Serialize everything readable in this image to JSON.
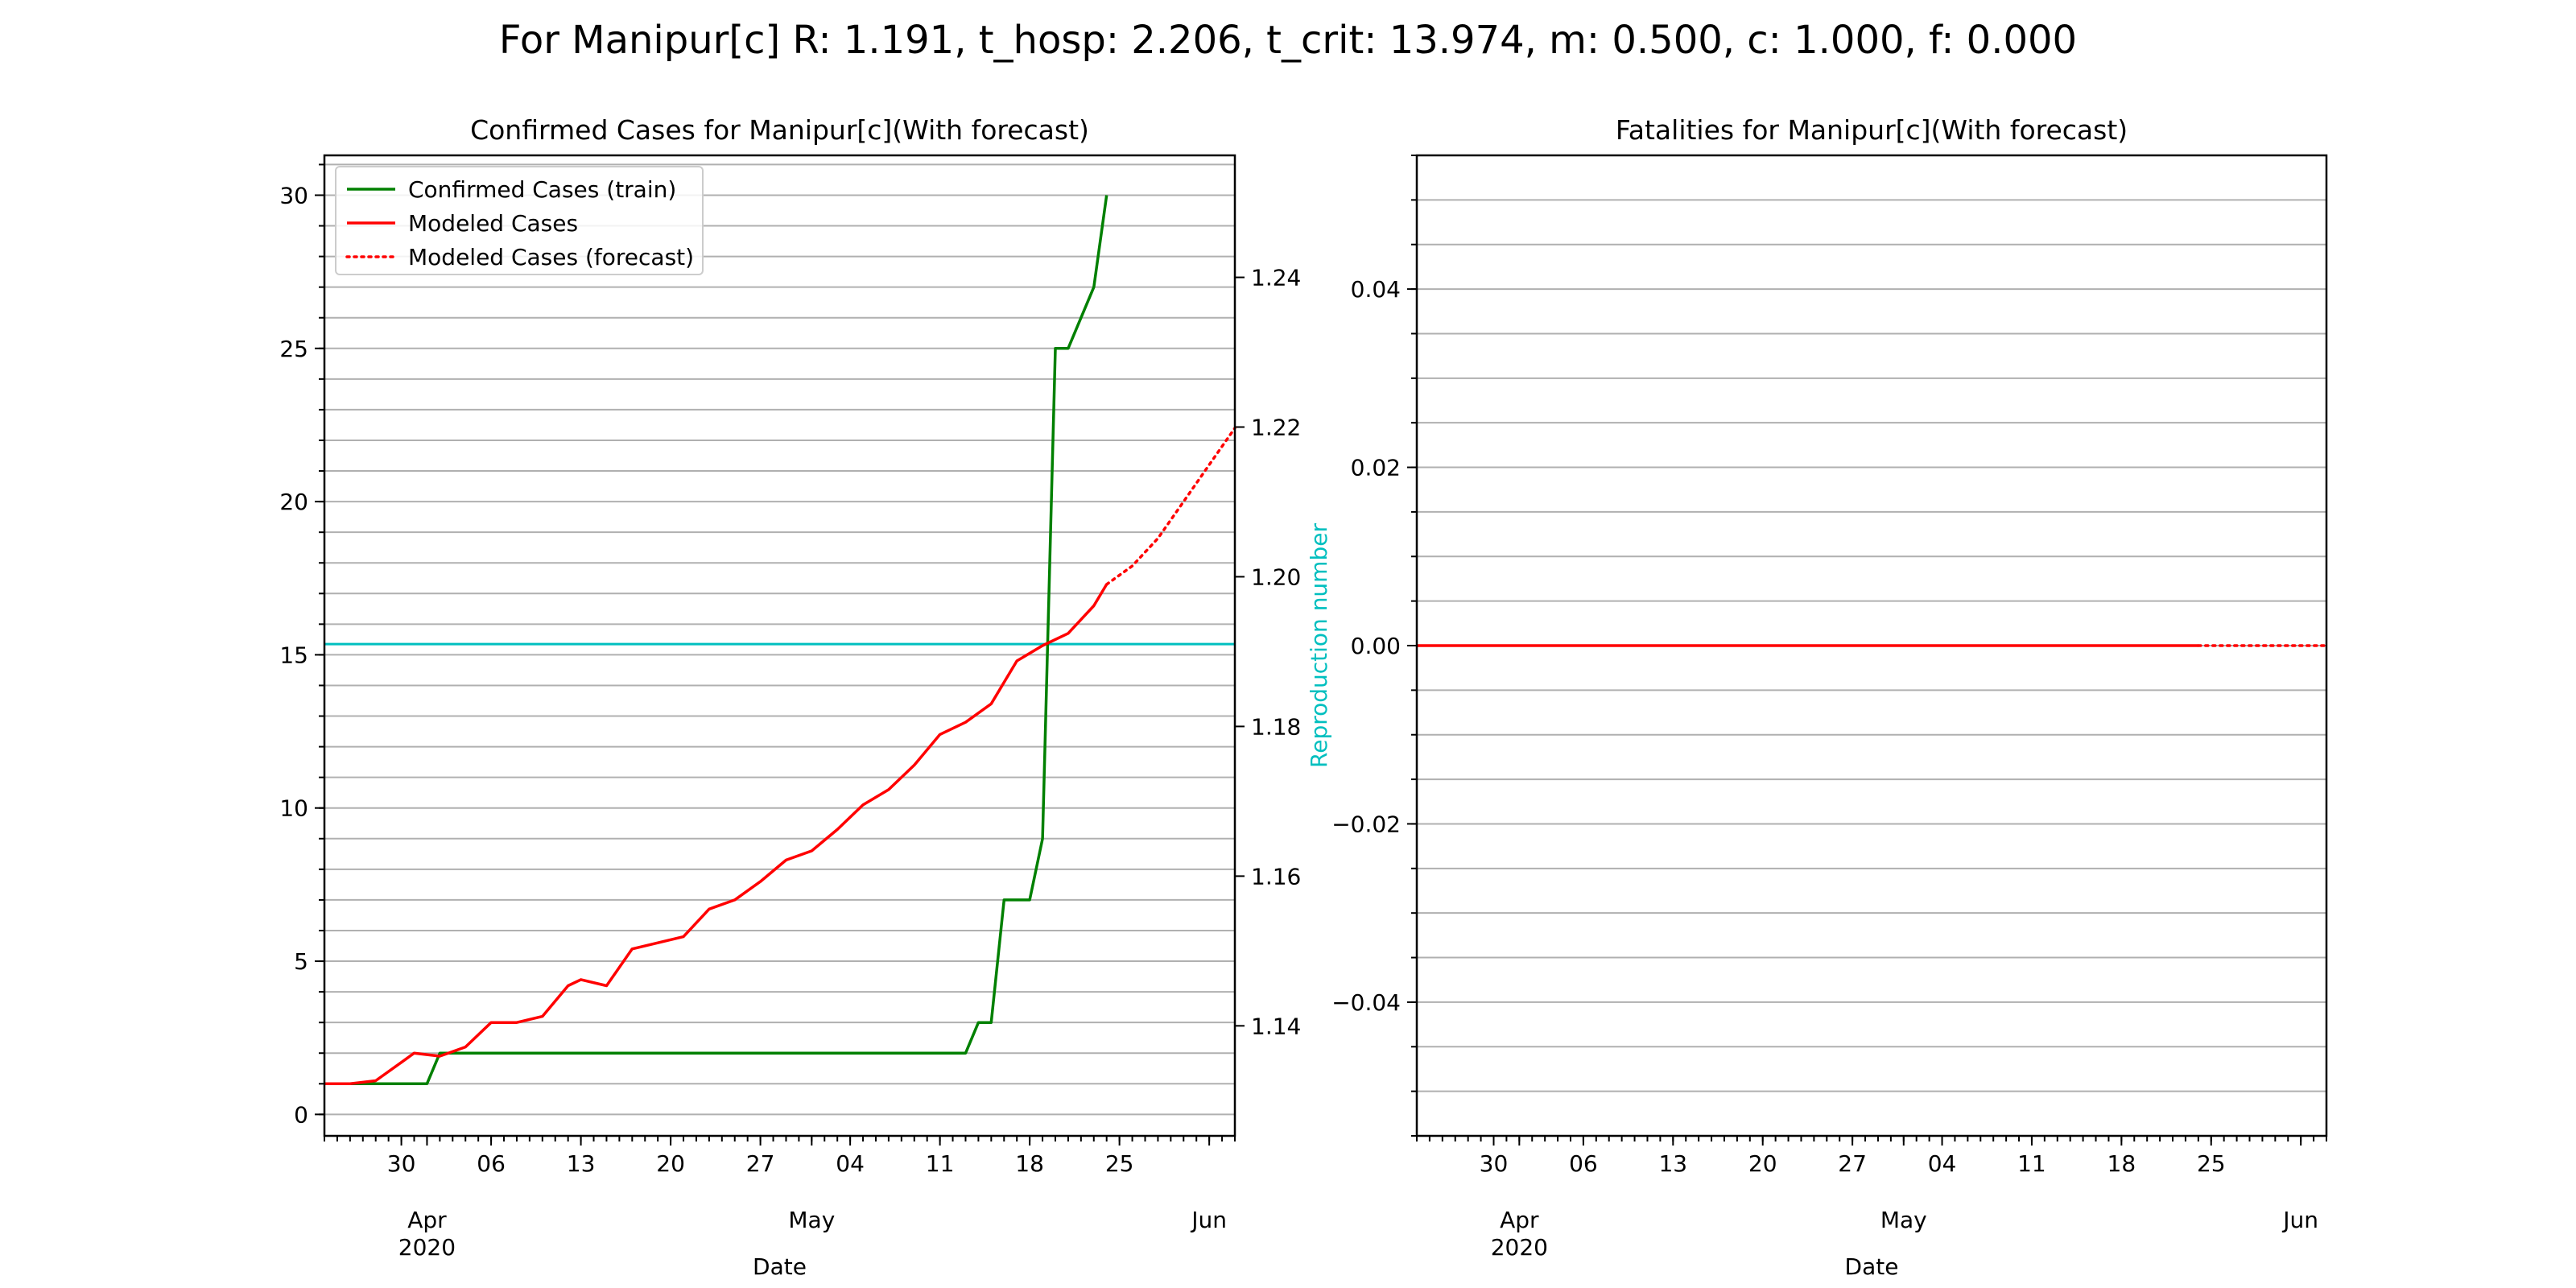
{
  "suptitle": "For Manipur[c] R: 1.191, t_hosp: 2.206, t_crit: 13.974, m: 0.500, c: 1.000, f: 0.000",
  "colors": {
    "train": "#008000",
    "model": "#ff0000",
    "r_line": "#00bfbf",
    "grid": "#b0b0b0"
  },
  "chart_data": [
    {
      "type": "line",
      "title": "Confirmed Cases for Manipur[c](With forecast)",
      "xlabel": "Date",
      "ylabel_right": "Reproduction number",
      "x_tick_labels": [
        "30",
        "06",
        "13",
        "20",
        "27",
        "04",
        "11",
        "18",
        "25"
      ],
      "x_month_labels": [
        {
          "label": "Apr",
          "year": "2020"
        },
        {
          "label": "May",
          "year": ""
        },
        {
          "label": "Jun",
          "year": ""
        }
      ],
      "xlim_dates": [
        "2020-03-24",
        "2020-06-03"
      ],
      "ylim": [
        -0.7,
        31.3
      ],
      "y_ticks": [
        0,
        5,
        10,
        15,
        20,
        25,
        30
      ],
      "y_tick_labels": [
        "0",
        "5",
        "10",
        "15",
        "20",
        "25",
        "30"
      ],
      "y_minor_step": 1,
      "y2lim": [
        1.1253,
        1.2563
      ],
      "y2_ticks": [
        1.14,
        1.16,
        1.18,
        1.2,
        1.22,
        1.24
      ],
      "y2_tick_labels": [
        "1.14",
        "1.16",
        "1.18",
        "1.20",
        "1.22",
        "1.24"
      ],
      "grid": "horizontal (major and minor)",
      "legend_position": "upper-left",
      "series": [
        {
          "name": "Confirmed Cases (train)",
          "style": "solid",
          "color": "#008000",
          "x": [
            "2020-03-24",
            "2020-03-28",
            "2020-04-01",
            "2020-04-02",
            "2020-04-04",
            "2020-05-13",
            "2020-05-14",
            "2020-05-15",
            "2020-05-16",
            "2020-05-17",
            "2020-05-18",
            "2020-05-19",
            "2020-05-20",
            "2020-05-21",
            "2020-05-23",
            "2020-05-24"
          ],
          "y": [
            1,
            1,
            1,
            2,
            2,
            2,
            3,
            3,
            7,
            7,
            7,
            9,
            25,
            25,
            27,
            30
          ]
        },
        {
          "name": "Modeled Cases",
          "style": "solid",
          "color": "#ff0000",
          "x": [
            "2020-03-24",
            "2020-03-26",
            "2020-03-28",
            "2020-03-30",
            "2020-03-31",
            "2020-04-02",
            "2020-04-04",
            "2020-04-06",
            "2020-04-08",
            "2020-04-10",
            "2020-04-12",
            "2020-04-13",
            "2020-04-15",
            "2020-04-17",
            "2020-04-19",
            "2020-04-21",
            "2020-04-23",
            "2020-04-25",
            "2020-04-27",
            "2020-04-29",
            "2020-05-01",
            "2020-05-03",
            "2020-05-05",
            "2020-05-07",
            "2020-05-09",
            "2020-05-11",
            "2020-05-13",
            "2020-05-15",
            "2020-05-17",
            "2020-05-19",
            "2020-05-21",
            "2020-05-23",
            "2020-05-24"
          ],
          "y": [
            1.0,
            1.0,
            1.1,
            1.7,
            2.0,
            1.9,
            2.2,
            3.0,
            3.0,
            3.2,
            4.2,
            4.4,
            4.2,
            5.4,
            5.6,
            5.8,
            6.7,
            7.0,
            7.6,
            8.3,
            8.6,
            9.3,
            10.1,
            10.6,
            11.4,
            12.4,
            12.8,
            13.4,
            14.8,
            15.3,
            15.7,
            16.6,
            17.3
          ]
        },
        {
          "name": "Modeled Cases (forecast)",
          "style": "dotted",
          "color": "#ff0000",
          "x": [
            "2020-05-24",
            "2020-05-26",
            "2020-05-28",
            "2020-05-30",
            "2020-06-01",
            "2020-06-03"
          ],
          "y": [
            17.3,
            17.9,
            18.8,
            20.0,
            21.2,
            22.4
          ]
        }
      ],
      "reproduction_number": {
        "value": 1.191,
        "axis": "right",
        "color": "#00bfbf"
      }
    },
    {
      "type": "line",
      "title": "Fatalities for Manipur[c](With forecast)",
      "xlabel": "Date",
      "x_tick_labels": [
        "30",
        "06",
        "13",
        "20",
        "27",
        "04",
        "11",
        "18",
        "25"
      ],
      "x_month_labels": [
        {
          "label": "Apr",
          "year": "2020"
        },
        {
          "label": "May",
          "year": ""
        },
        {
          "label": "Jun",
          "year": ""
        }
      ],
      "xlim_dates": [
        "2020-03-24",
        "2020-06-03"
      ],
      "ylim": [
        -0.055,
        0.055
      ],
      "y_ticks": [
        -0.04,
        -0.02,
        0.0,
        0.02,
        0.04
      ],
      "y_tick_labels": [
        "−0.04",
        "−0.02",
        "0.00",
        "0.02",
        "0.04"
      ],
      "y_minor_step": 0.005,
      "grid": "horizontal (major and minor)",
      "series": [
        {
          "style": "solid",
          "color": "#ff0000",
          "x": [
            "2020-03-24",
            "2020-05-24"
          ],
          "y": [
            0,
            0
          ]
        },
        {
          "style": "dotted",
          "color": "#ff0000",
          "x": [
            "2020-05-24",
            "2020-06-03"
          ],
          "y": [
            0,
            0
          ]
        }
      ]
    }
  ]
}
